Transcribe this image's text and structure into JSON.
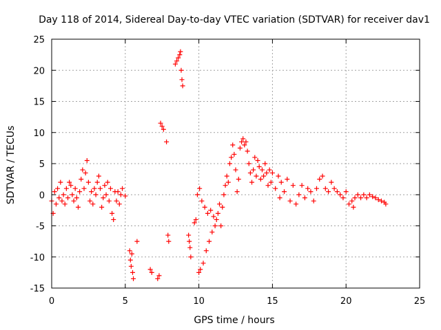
{
  "chart_data": {
    "type": "scatter",
    "title": "Day 118 of 2014, Sidereal Day-to-day VTEC variation (SDTVAR) for receiver dav1",
    "xlabel": "GPS time / hours",
    "ylabel": "SDTVAR / TECUs",
    "xlim": [
      0,
      25
    ],
    "ylim": [
      -15,
      25
    ],
    "xticks": [
      0,
      5,
      10,
      15,
      20,
      25
    ],
    "yticks": [
      -15,
      -10,
      -5,
      0,
      5,
      10,
      15,
      20,
      25
    ],
    "grid": true,
    "marker": "+",
    "color": "#ff0000",
    "series": [
      {
        "name": "dav1",
        "points": [
          [
            0.0,
            -1.0
          ],
          [
            0.1,
            -3.0
          ],
          [
            0.2,
            0.5
          ],
          [
            0.3,
            -1.5
          ],
          [
            0.4,
            1.0
          ],
          [
            0.5,
            -0.5
          ],
          [
            0.6,
            2.0
          ],
          [
            0.7,
            -1.0
          ],
          [
            0.8,
            0.0
          ],
          [
            0.9,
            -1.5
          ],
          [
            1.0,
            1.0
          ],
          [
            1.1,
            -0.5
          ],
          [
            1.2,
            2.0
          ],
          [
            1.3,
            1.5
          ],
          [
            1.4,
            0.0
          ],
          [
            1.5,
            -1.0
          ],
          [
            1.6,
            1.0
          ],
          [
            1.7,
            -0.5
          ],
          [
            1.8,
            -2.0
          ],
          [
            1.9,
            0.5
          ],
          [
            2.0,
            2.5
          ],
          [
            2.1,
            4.0
          ],
          [
            2.2,
            1.0
          ],
          [
            2.3,
            3.5
          ],
          [
            2.4,
            5.5
          ],
          [
            2.5,
            2.0
          ],
          [
            2.6,
            -1.0
          ],
          [
            2.7,
            0.5
          ],
          [
            2.8,
            -1.5
          ],
          [
            2.9,
            1.0
          ],
          [
            3.0,
            0.0
          ],
          [
            3.1,
            2.0
          ],
          [
            3.2,
            3.0
          ],
          [
            3.3,
            1.0
          ],
          [
            3.4,
            -2.0
          ],
          [
            3.5,
            -0.5
          ],
          [
            3.6,
            1.5
          ],
          [
            3.7,
            0.0
          ],
          [
            3.8,
            2.0
          ],
          [
            3.9,
            -1.0
          ],
          [
            4.0,
            1.0
          ],
          [
            4.1,
            -3.0
          ],
          [
            4.2,
            -4.0
          ],
          [
            4.3,
            0.5
          ],
          [
            4.4,
            -1.0
          ],
          [
            4.5,
            0.5
          ],
          [
            4.6,
            -1.5
          ],
          [
            4.7,
            0.0
          ],
          [
            4.8,
            1.0
          ],
          [
            5.0,
            -0.2
          ],
          [
            5.3,
            -9.0
          ],
          [
            5.35,
            -10.5
          ],
          [
            5.4,
            -11.5
          ],
          [
            5.45,
            -9.5
          ],
          [
            5.5,
            -12.5
          ],
          [
            5.55,
            -13.5
          ],
          [
            5.8,
            -7.5
          ],
          [
            6.7,
            -12.0
          ],
          [
            6.8,
            -12.5
          ],
          [
            7.2,
            -13.5
          ],
          [
            7.3,
            -13.0
          ],
          [
            7.4,
            11.5
          ],
          [
            7.5,
            11.0
          ],
          [
            7.6,
            10.5
          ],
          [
            7.8,
            8.5
          ],
          [
            7.9,
            -6.5
          ],
          [
            7.95,
            -7.5
          ],
          [
            8.4,
            21.0
          ],
          [
            8.5,
            21.5
          ],
          [
            8.6,
            22.0
          ],
          [
            8.7,
            22.5
          ],
          [
            8.75,
            23.0
          ],
          [
            8.8,
            20.0
          ],
          [
            8.85,
            18.5
          ],
          [
            8.9,
            17.5
          ],
          [
            9.3,
            -6.5
          ],
          [
            9.35,
            -7.5
          ],
          [
            9.4,
            -8.5
          ],
          [
            9.45,
            -10.0
          ],
          [
            9.7,
            -4.5
          ],
          [
            9.8,
            -4.0
          ],
          [
            9.9,
            0.0
          ],
          [
            10.0,
            -12.5
          ],
          [
            10.05,
            1.0
          ],
          [
            10.1,
            -12.0
          ],
          [
            10.2,
            -1.0
          ],
          [
            10.3,
            -11.0
          ],
          [
            10.4,
            -2.0
          ],
          [
            10.5,
            -9.0
          ],
          [
            10.6,
            -3.0
          ],
          [
            10.7,
            -7.5
          ],
          [
            10.8,
            -2.5
          ],
          [
            10.9,
            -6.0
          ],
          [
            11.0,
            -3.5
          ],
          [
            11.1,
            -5.0
          ],
          [
            11.2,
            -4.0
          ],
          [
            11.3,
            -3.0
          ],
          [
            11.4,
            -1.5
          ],
          [
            11.5,
            -5.0
          ],
          [
            11.6,
            -2.0
          ],
          [
            11.7,
            0.0
          ],
          [
            11.8,
            1.5
          ],
          [
            11.9,
            3.0
          ],
          [
            12.0,
            2.0
          ],
          [
            12.1,
            5.0
          ],
          [
            12.2,
            6.0
          ],
          [
            12.3,
            8.0
          ],
          [
            12.4,
            6.5
          ],
          [
            12.5,
            4.0
          ],
          [
            12.6,
            0.5
          ],
          [
            12.7,
            2.5
          ],
          [
            12.8,
            7.5
          ],
          [
            12.9,
            8.5
          ],
          [
            13.0,
            9.0
          ],
          [
            13.1,
            8.0
          ],
          [
            13.2,
            8.5
          ],
          [
            13.3,
            7.0
          ],
          [
            13.4,
            5.0
          ],
          [
            13.5,
            3.5
          ],
          [
            13.6,
            2.0
          ],
          [
            13.7,
            4.0
          ],
          [
            13.8,
            6.0
          ],
          [
            13.9,
            3.0
          ],
          [
            14.0,
            5.5
          ],
          [
            14.1,
            4.5
          ],
          [
            14.2,
            2.5
          ],
          [
            14.3,
            4.0
          ],
          [
            14.4,
            3.0
          ],
          [
            14.5,
            5.0
          ],
          [
            14.6,
            3.5
          ],
          [
            14.7,
            1.5
          ],
          [
            14.8,
            4.0
          ],
          [
            14.9,
            2.0
          ],
          [
            15.0,
            3.5
          ],
          [
            15.2,
            1.0
          ],
          [
            15.4,
            3.0
          ],
          [
            15.5,
            -0.5
          ],
          [
            15.6,
            2.0
          ],
          [
            15.8,
            0.5
          ],
          [
            16.0,
            2.5
          ],
          [
            16.2,
            -1.0
          ],
          [
            16.4,
            1.5
          ],
          [
            16.6,
            -1.5
          ],
          [
            16.8,
            0.0
          ],
          [
            17.0,
            1.5
          ],
          [
            17.2,
            -0.5
          ],
          [
            17.4,
            1.0
          ],
          [
            17.6,
            0.5
          ],
          [
            17.8,
            -1.0
          ],
          [
            18.0,
            1.0
          ],
          [
            18.2,
            2.5
          ],
          [
            18.4,
            3.0
          ],
          [
            18.6,
            1.0
          ],
          [
            18.8,
            0.5
          ],
          [
            19.0,
            2.0
          ],
          [
            19.2,
            1.0
          ],
          [
            19.4,
            0.5
          ],
          [
            19.6,
            0.0
          ],
          [
            19.8,
            -0.5
          ],
          [
            20.0,
            0.5
          ],
          [
            20.2,
            -1.5
          ],
          [
            20.4,
            -1.0
          ],
          [
            20.5,
            -2.0
          ],
          [
            20.6,
            -0.5
          ],
          [
            20.8,
            0.0
          ],
          [
            21.0,
            -0.5
          ],
          [
            21.2,
            0.0
          ],
          [
            21.4,
            -0.5
          ],
          [
            21.6,
            0.0
          ],
          [
            21.8,
            -0.3
          ],
          [
            22.0,
            -0.5
          ],
          [
            22.2,
            -0.8
          ],
          [
            22.4,
            -1.0
          ],
          [
            22.6,
            -1.2
          ],
          [
            22.7,
            -1.5
          ]
        ]
      }
    ]
  }
}
